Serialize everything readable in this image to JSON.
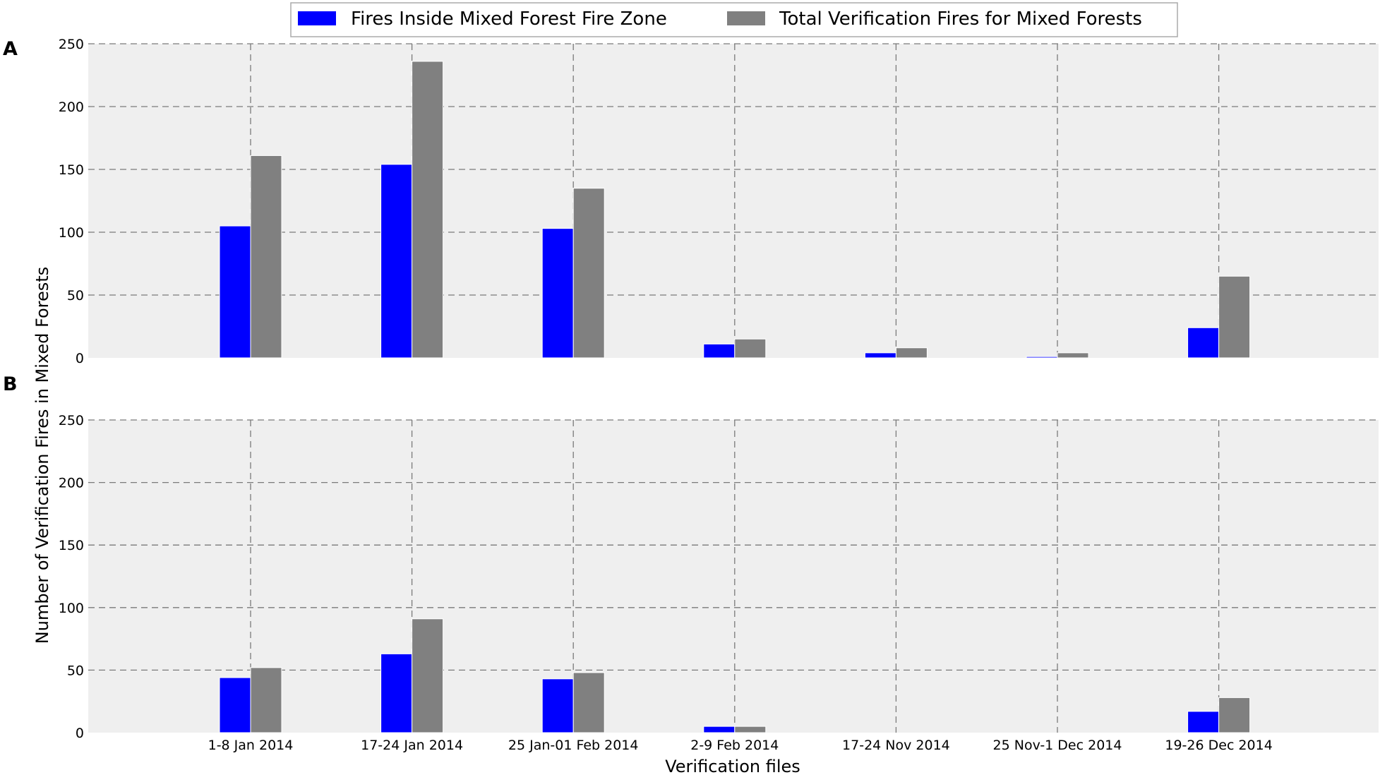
{
  "chart_data": [
    {
      "panel": "A",
      "type": "bar",
      "categories": [
        "1-8 Jan 2014",
        "17-24 Jan 2014",
        "25 Jan-01 Feb 2014",
        "2-9 Feb 2014",
        "17-24 Nov 2014",
        "25 Nov-1 Dec 2014",
        "19-26 Dec 2014"
      ],
      "series": [
        {
          "name": "Fires Inside Mixed Forest Fire Zone",
          "color": "#0000ff",
          "values": [
            105,
            154,
            103,
            11,
            4,
            1,
            24
          ]
        },
        {
          "name": "Total Verification Fires for Mixed Forests",
          "color": "#808080",
          "values": [
            161,
            236,
            135,
            15,
            8,
            4,
            65
          ]
        }
      ],
      "ylim": [
        0,
        250
      ],
      "yticks": [
        0,
        50,
        100,
        150,
        200,
        250
      ],
      "grid": true
    },
    {
      "panel": "B",
      "type": "bar",
      "categories": [
        "1-8 Jan 2014",
        "17-24 Jan 2014",
        "25 Jan-01 Feb 2014",
        "2-9 Feb 2014",
        "17-24 Nov 2014",
        "25 Nov-1 Dec 2014",
        "19-26 Dec 2014"
      ],
      "series": [
        {
          "name": "Fires Inside Mixed Forest Fire Zone",
          "color": "#0000ff",
          "values": [
            44,
            63,
            43,
            5,
            0,
            0,
            17
          ]
        },
        {
          "name": "Total Verification Fires for Mixed Forests",
          "color": "#808080",
          "values": [
            52,
            91,
            48,
            5,
            0,
            0,
            28
          ]
        }
      ],
      "ylim": [
        0,
        250
      ],
      "yticks": [
        0,
        50,
        100,
        150,
        200,
        250
      ],
      "grid": true
    }
  ],
  "shared": {
    "xlabel": "Verification files",
    "ylabel": "Number of Verification Fires in Mixed Forests",
    "legend_position": "top-center",
    "legend": [
      {
        "label": "Fires Inside Mixed Forest Fire Zone",
        "color": "#0000ff"
      },
      {
        "label": "Total Verification Fires for Mixed Forests",
        "color": "#808080"
      }
    ]
  }
}
